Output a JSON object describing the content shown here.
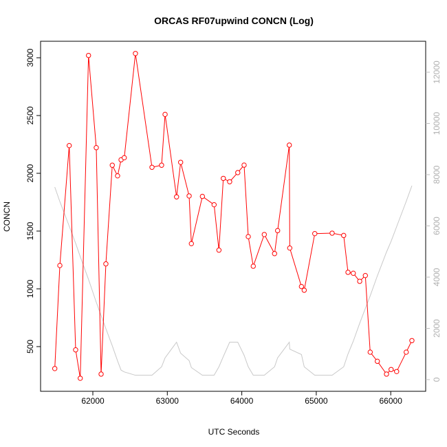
{
  "chart_data": {
    "type": "line",
    "title": "ORCAS RF07upwind CONCN (Log)",
    "xlabel": "UTC Seconds",
    "ylabel": "CONCN",
    "xlim": [
      61400,
      66350
    ],
    "ylim": [
      190,
      3080
    ],
    "y2lim": [
      -200,
      12600
    ],
    "x_ticks": [
      62000,
      63000,
      64000,
      65000,
      66000
    ],
    "y_ticks": [
      500,
      1000,
      1500,
      2000,
      2500,
      3000
    ],
    "y2_ticks": [
      0,
      2000,
      4000,
      6000,
      8000,
      10000,
      12000
    ],
    "grid": false,
    "colors": {
      "primary": "#ff0000",
      "secondary": "#bebebe"
    },
    "x": [
      61489,
      61557,
      61683,
      61769,
      61831,
      61942,
      62046,
      62111,
      62175,
      62261,
      62332,
      62379,
      62422,
      62572,
      62794,
      62923,
      62970,
      63124,
      63179,
      63293,
      63323,
      63471,
      63628,
      63693,
      63752,
      63837,
      63946,
      64031,
      64087,
      64154,
      64302,
      64440,
      64481,
      64638,
      64644,
      64801,
      64838,
      64980,
      65213,
      65368,
      65426,
      65497,
      65583,
      65659,
      65724,
      65820,
      65943,
      66005,
      66079,
      66208,
      66284
    ],
    "series": [
      {
        "name": "CONCN",
        "axis": "left",
        "values": [
          310,
          1202,
          2240,
          472,
          226,
          3020,
          2222,
          262,
          1216,
          2070,
          1978,
          2117,
          2135,
          3037,
          2052,
          2070,
          2510,
          1796,
          2095,
          1804,
          1391,
          1800,
          1728,
          1335,
          1956,
          1927,
          2006,
          2071,
          1452,
          1196,
          1470,
          1305,
          1504,
          2244,
          1353,
          1020,
          988,
          1478,
          1482,
          1462,
          1143,
          1135,
          1065,
          1115,
          452,
          373,
          262,
          302,
          284,
          452,
          552
        ]
      },
      {
        "name": "secondary",
        "axis": "right",
        "values": [
          7517,
          6950,
          5990,
          5320,
          4800,
          3910,
          3020,
          2500,
          1990,
          1320,
          730,
          370,
          300,
          170,
          170,
          500,
          850,
          1460,
          1030,
          740,
          470,
          170,
          170,
          500,
          900,
          1460,
          1460,
          950,
          500,
          170,
          170,
          500,
          850,
          1460,
          1190,
          980,
          500,
          170,
          170,
          500,
          1000,
          1500,
          2200,
          2780,
          3270,
          4050,
          4980,
          5400,
          5970,
          6960,
          7570
        ]
      }
    ]
  }
}
